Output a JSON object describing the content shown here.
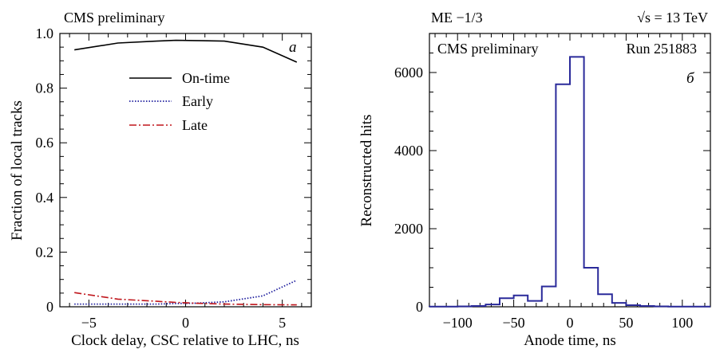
{
  "chart_data": [
    {
      "type": "line",
      "panel_tag": "a",
      "annotation": "CMS preliminary",
      "xlabel": "Clock delay, CSC relative to LHC, ns",
      "ylabel": "Fraction of local tracks",
      "xlim": [
        -6.5,
        6.5
      ],
      "ylim": [
        0,
        1.0
      ],
      "xticks": [
        -5,
        0,
        5
      ],
      "xtick_labels": [
        "−5",
        "0",
        "5"
      ],
      "yticks": [
        0,
        0.2,
        0.4,
        0.6,
        0.8,
        1.0
      ],
      "ytick_labels": [
        "0",
        "0.2",
        "0.4",
        "0.6",
        "0.8",
        "1.0"
      ],
      "legend_position": "upper-center",
      "series": [
        {
          "name": "On-time",
          "color": "#000000",
          "dash": "solid",
          "x": [
            -5.75,
            -3.5,
            -1.5,
            -0.5,
            0.5,
            2,
            4,
            5.75
          ],
          "y": [
            0.94,
            0.965,
            0.972,
            0.975,
            0.974,
            0.972,
            0.95,
            0.895
          ]
        },
        {
          "name": "Early",
          "color": "#1f1f9e",
          "dash": "dotted",
          "x": [
            -5.75,
            -3.5,
            -1.5,
            -0.5,
            0.5,
            2,
            4,
            5.75
          ],
          "y": [
            0.01,
            0.01,
            0.01,
            0.012,
            0.013,
            0.018,
            0.04,
            0.097
          ]
        },
        {
          "name": "Late",
          "color": "#c0161c",
          "dash": "dashdot",
          "x": [
            -5.75,
            -3.5,
            -1.5,
            -0.5,
            0.5,
            2,
            4,
            5.75
          ],
          "y": [
            0.052,
            0.028,
            0.02,
            0.016,
            0.013,
            0.01,
            0.008,
            0.007
          ]
        }
      ]
    },
    {
      "type": "histogram",
      "panel_tag": "б",
      "header_left": "ME −1/3",
      "header_right": "√s = 13 TeV",
      "annotation_left": "CMS preliminary",
      "annotation_right": "Run 251883",
      "xlabel": "Anode time, ns",
      "ylabel": "Reconstructed hits",
      "xlim": [
        -125,
        125
      ],
      "ylim": [
        0,
        7000
      ],
      "xticks": [
        -100,
        -50,
        0,
        50,
        100
      ],
      "xtick_labels": [
        "−100",
        "−50",
        "0",
        "50",
        "100"
      ],
      "yticks": [
        0,
        2000,
        4000,
        6000
      ],
      "ytick_labels": [
        "0",
        "2000",
        "4000",
        "6000"
      ],
      "color": "#2a2a9a",
      "bin_edges": [
        -125,
        -112.5,
        -100,
        -87.5,
        -75,
        -62.5,
        -50,
        -37.5,
        -25,
        -12.5,
        0,
        12.5,
        25,
        37.5,
        50,
        62.5,
        75,
        87.5,
        100,
        112.5,
        125
      ],
      "counts": [
        5,
        5,
        10,
        20,
        60,
        220,
        290,
        150,
        520,
        5700,
        6400,
        1000,
        320,
        100,
        40,
        20,
        10,
        5,
        5,
        5
      ]
    }
  ]
}
